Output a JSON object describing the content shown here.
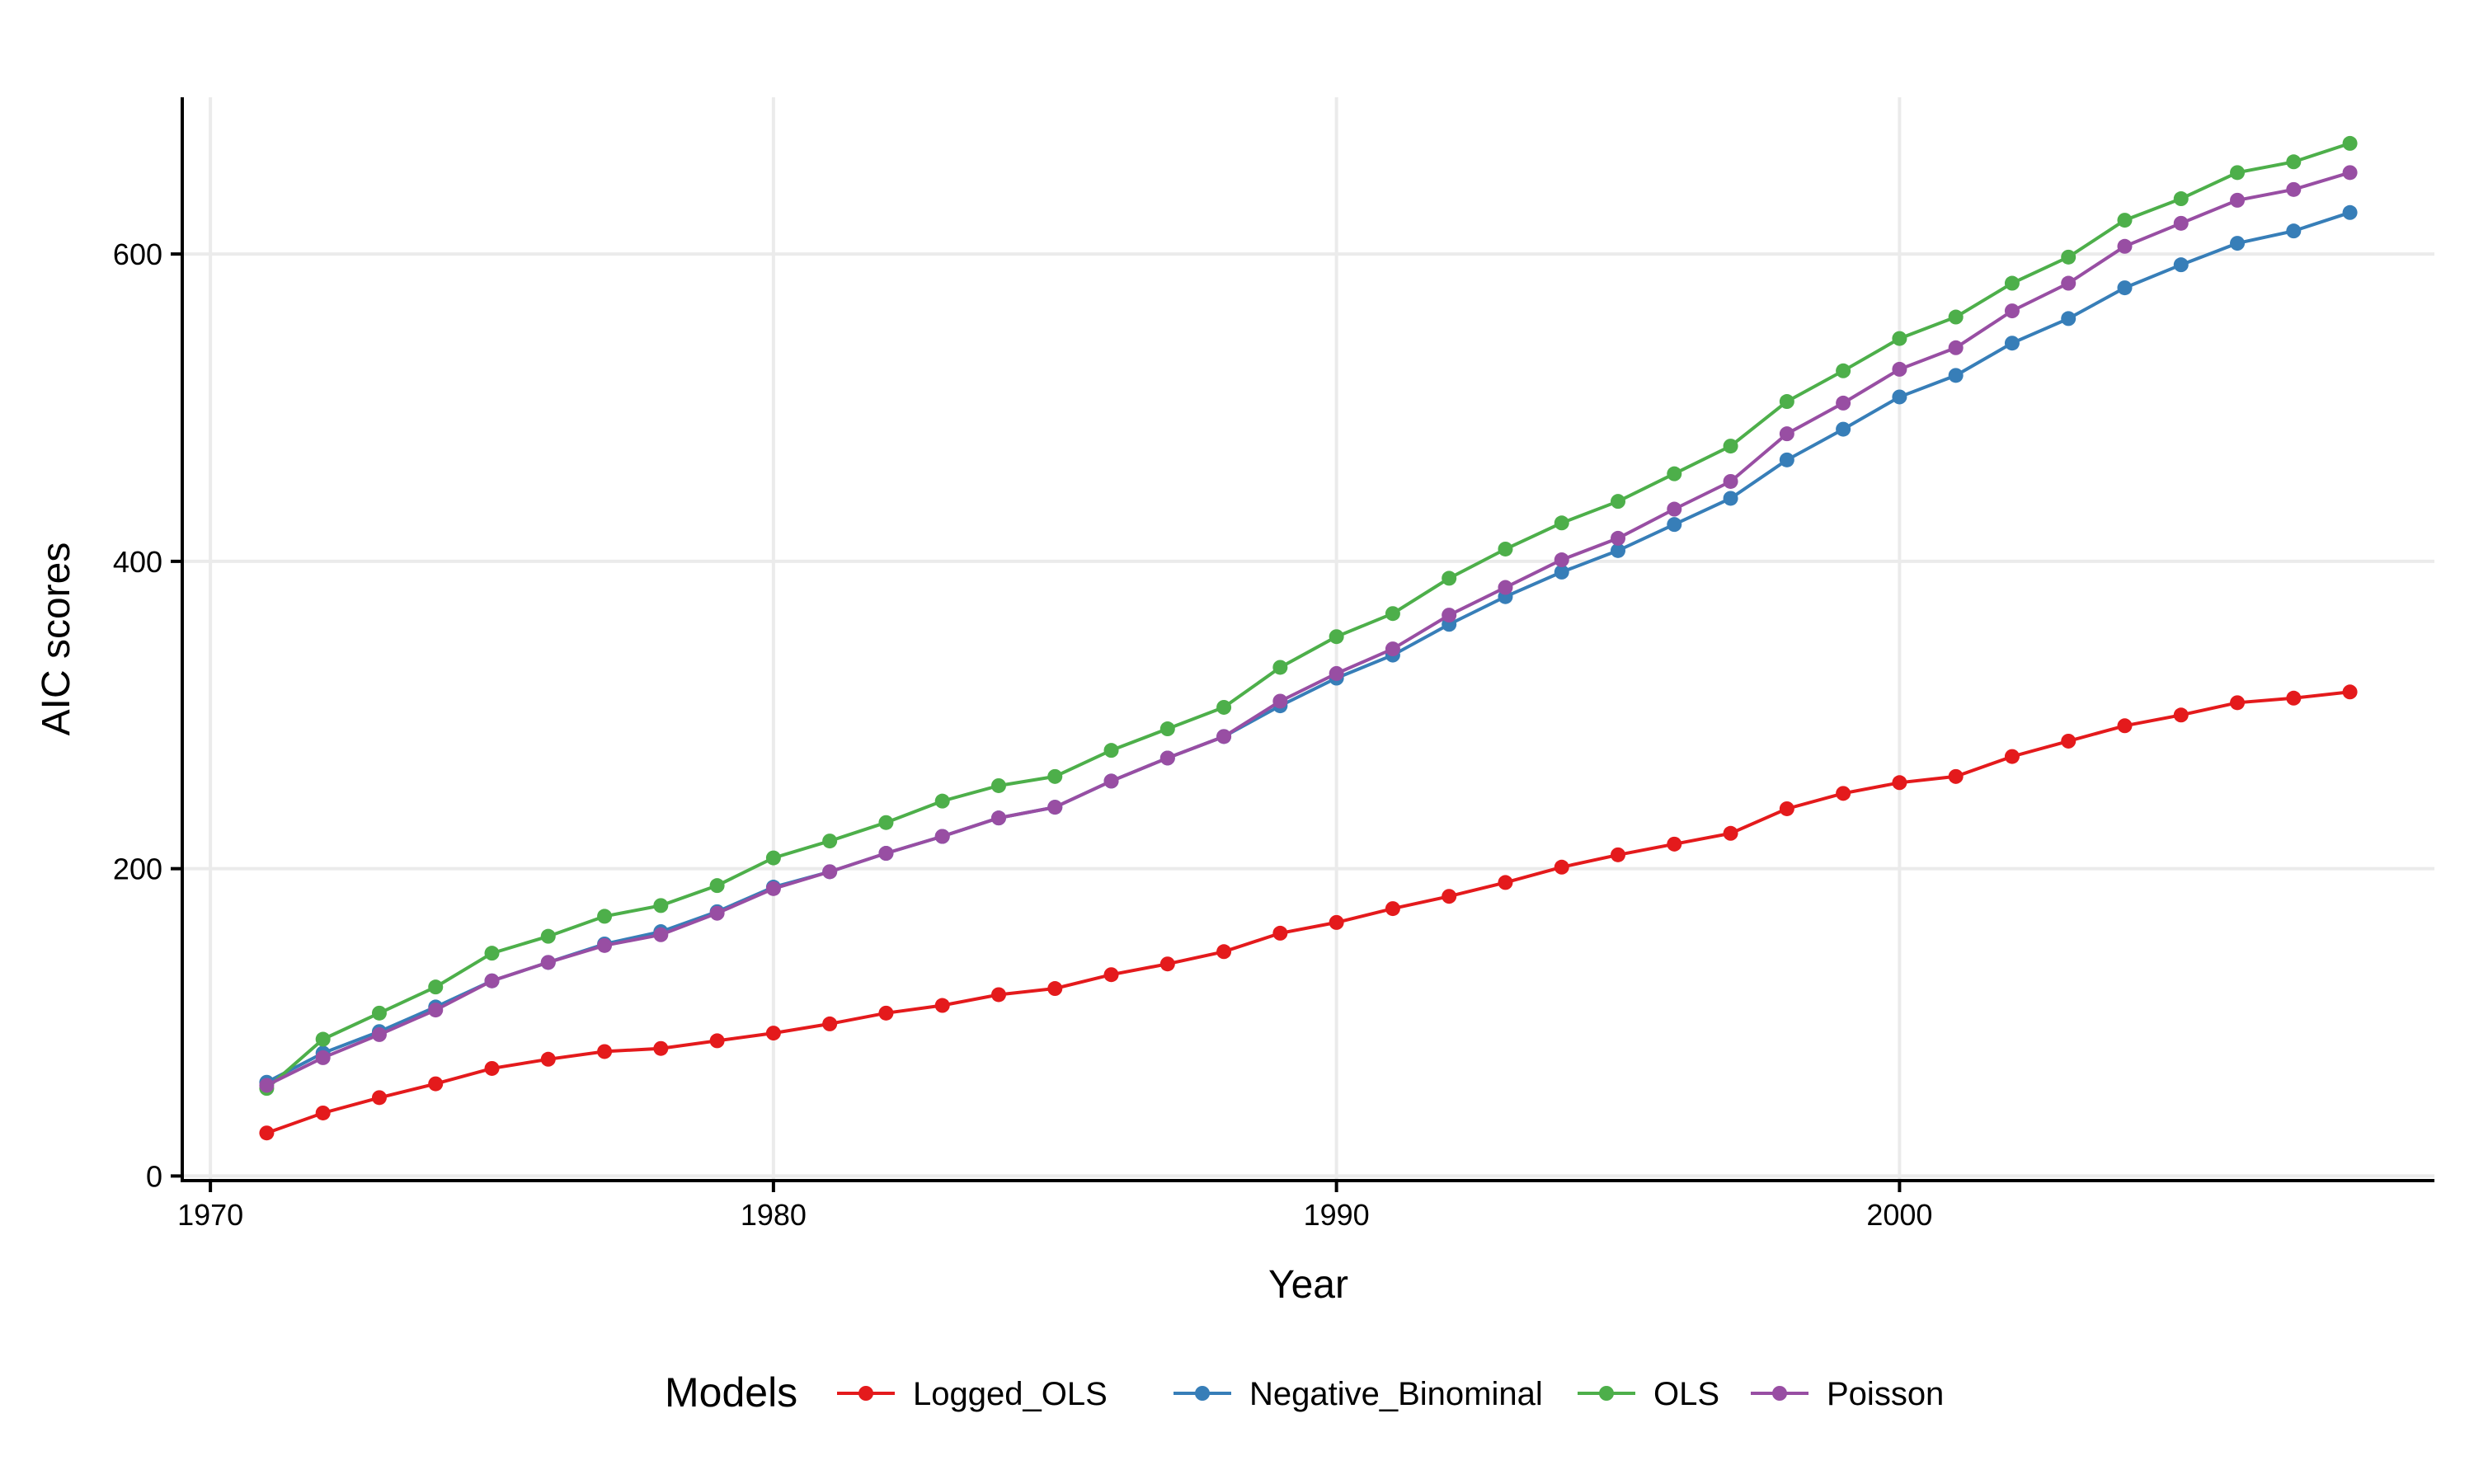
{
  "chart_data": {
    "type": "line",
    "xlabel": "Year",
    "ylabel": "AIC scores",
    "xlim": [
      1969.5,
      2009.5
    ],
    "ylim": [
      -3,
      702
    ],
    "xticks": [
      1970,
      1980,
      1990,
      2000
    ],
    "yticks": [
      0,
      200,
      400,
      600
    ],
    "grid": true,
    "legend": {
      "title": "Models",
      "position": "bottom"
    },
    "x": [
      1971,
      1972,
      1973,
      1974,
      1975,
      1976,
      1977,
      1978,
      1979,
      1980,
      1981,
      1982,
      1983,
      1984,
      1985,
      1986,
      1987,
      1988,
      1989,
      1990,
      1991,
      1992,
      1993,
      1994,
      1995,
      1996,
      1997,
      1998,
      1999,
      2000,
      2001,
      2002,
      2003,
      2004,
      2005,
      2006,
      2007,
      2008
    ],
    "series": [
      {
        "name": "Logged_OLS",
        "color": "#e41a1c",
        "values": [
          28,
          41,
          51,
          60,
          70,
          76,
          81,
          83,
          88,
          93,
          99,
          106,
          111,
          118,
          122,
          131,
          138,
          146,
          158,
          165,
          174,
          182,
          191,
          201,
          209,
          216,
          223,
          239,
          249,
          256,
          260,
          273,
          283,
          293,
          300,
          308,
          311,
          315
        ]
      },
      {
        "name": "Negative_Binominal",
        "color": "#377eb8",
        "values": [
          61,
          80,
          94,
          110,
          127,
          139,
          151,
          159,
          172,
          188,
          198,
          210,
          221,
          233,
          240,
          257,
          272,
          286,
          306,
          324,
          339,
          359,
          377,
          393,
          407,
          424,
          441,
          466,
          486,
          507,
          521,
          542,
          558,
          578,
          593,
          607,
          615,
          627
        ]
      },
      {
        "name": "OLS",
        "color": "#4daf4a",
        "values": [
          57,
          89,
          106,
          123,
          145,
          156,
          169,
          176,
          189,
          207,
          218,
          230,
          244,
          254,
          260,
          277,
          291,
          305,
          331,
          351,
          366,
          389,
          408,
          425,
          439,
          457,
          475,
          504,
          524,
          545,
          559,
          581,
          598,
          622,
          636,
          653,
          660,
          672
        ]
      },
      {
        "name": "Poisson",
        "color": "#984ea3",
        "values": [
          59,
          77,
          92,
          108,
          127,
          139,
          150,
          157,
          171,
          187,
          198,
          210,
          221,
          233,
          240,
          257,
          272,
          286,
          309,
          327,
          343,
          365,
          383,
          401,
          415,
          434,
          452,
          483,
          503,
          525,
          539,
          563,
          581,
          605,
          620,
          635,
          642,
          653
        ]
      }
    ]
  }
}
